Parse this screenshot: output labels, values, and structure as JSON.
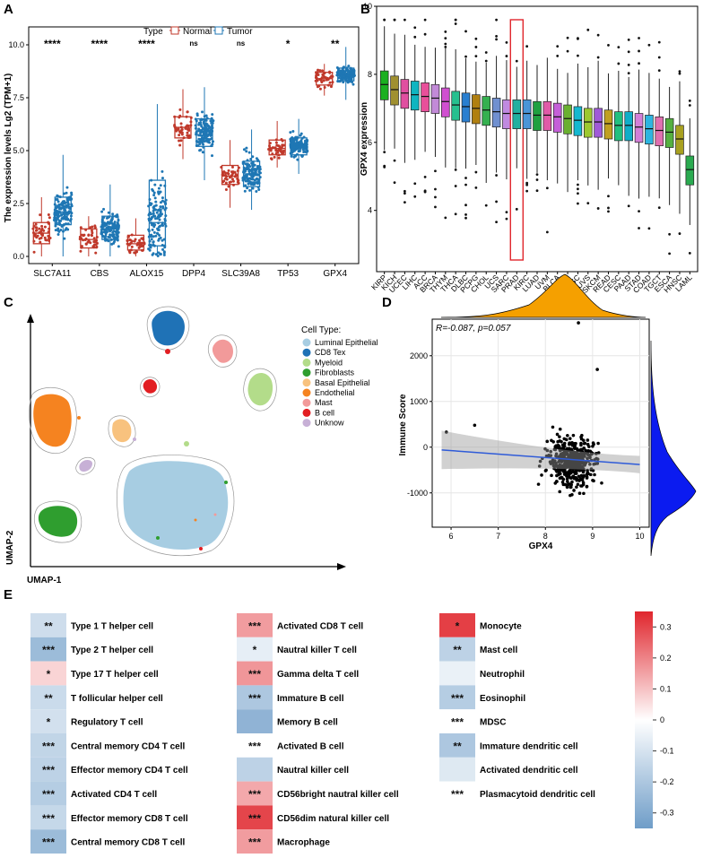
{
  "panel_labels": {
    "a": "A",
    "b": "B",
    "c": "C",
    "d": "D",
    "e": "E"
  },
  "chart_data": [
    {
      "panel": "A",
      "type": "box",
      "legend_title": "Type",
      "legend": [
        "Normal",
        "Tumor"
      ],
      "colors": {
        "Normal": "#c0392b",
        "Tumor": "#1f77b4"
      },
      "ylabel": "The expression levels Lg2 (TPM+1)",
      "ylim": [
        -0.3,
        10.8
      ],
      "yticks": [
        "0.0",
        "2.5",
        "5.0",
        "7.5",
        "10.0"
      ],
      "categories": [
        "SLC7A11",
        "CBS",
        "ALOX15",
        "DPP4",
        "SLC39A8",
        "TP53",
        "GPX4"
      ],
      "significance": [
        "****",
        "****",
        "****",
        "ns",
        "ns",
        "*",
        "**"
      ],
      "series": [
        {
          "name": "Normal",
          "boxes": [
            {
              "whislo": 0.0,
              "q1": 0.6,
              "med": 1.1,
              "q3": 1.6,
              "whishi": 2.8
            },
            {
              "whislo": 0.0,
              "q1": 0.4,
              "med": 0.8,
              "q3": 1.3,
              "whishi": 1.9
            },
            {
              "whislo": 0.0,
              "q1": 0.3,
              "med": 0.6,
              "q3": 1.0,
              "whishi": 1.8
            },
            {
              "whislo": 4.6,
              "q1": 5.6,
              "med": 6.1,
              "q3": 6.6,
              "whishi": 7.9
            },
            {
              "whislo": 2.3,
              "q1": 3.4,
              "med": 3.8,
              "q3": 4.3,
              "whishi": 5.5
            },
            {
              "whislo": 4.2,
              "q1": 4.8,
              "med": 5.1,
              "q3": 5.5,
              "whishi": 6.4
            },
            {
              "whislo": 7.6,
              "q1": 8.1,
              "med": 8.4,
              "q3": 8.7,
              "whishi": 9.1
            }
          ]
        },
        {
          "name": "Tumor",
          "boxes": [
            {
              "whislo": 0.0,
              "q1": 1.5,
              "med": 2.1,
              "q3": 2.8,
              "whishi": 4.8
            },
            {
              "whislo": 0.0,
              "q1": 0.8,
              "med": 1.3,
              "q3": 1.9,
              "whishi": 3.4
            },
            {
              "whislo": 0.0,
              "q1": 0.5,
              "med": 1.6,
              "q3": 3.6,
              "whishi": 7.2
            },
            {
              "whislo": 3.6,
              "q1": 5.2,
              "med": 5.9,
              "q3": 6.5,
              "whishi": 8.0
            },
            {
              "whislo": 2.2,
              "q1": 3.3,
              "med": 3.9,
              "q3": 4.5,
              "whishi": 6.0
            },
            {
              "whislo": 3.9,
              "q1": 4.8,
              "med": 5.2,
              "q3": 5.6,
              "whishi": 6.5
            },
            {
              "whislo": 7.4,
              "q1": 8.3,
              "med": 8.6,
              "q3": 8.9,
              "whishi": 9.9
            }
          ]
        }
      ]
    },
    {
      "panel": "B",
      "type": "box",
      "ylabel": "GPX4 expression",
      "ylim": [
        2.2,
        10.0
      ],
      "yticks": [
        "4",
        "6",
        "8",
        "10"
      ],
      "highlight": "PRAD",
      "categories": [
        "KIRP",
        "KICH",
        "UCEC",
        "LIHC",
        "ACC",
        "BRCA",
        "THYM",
        "THCA",
        "DLBC",
        "PCPG",
        "CHOL",
        "UCS",
        "SARC",
        "PRAD",
        "KIRC",
        "LUAD",
        "UVM",
        "BLCA",
        "MESO",
        "LUSC",
        "UVS",
        "SKCM",
        "READ",
        "CESC",
        "PAAD",
        "STAD",
        "COAD",
        "TGCT",
        "ESCA",
        "HNSC",
        "LAML"
      ],
      "medians": [
        7.7,
        7.55,
        7.45,
        7.4,
        7.35,
        7.3,
        7.2,
        7.1,
        7.05,
        7.0,
        6.95,
        6.9,
        6.85,
        6.85,
        6.85,
        6.8,
        6.8,
        6.75,
        6.7,
        6.65,
        6.6,
        6.6,
        6.55,
        6.5,
        6.5,
        6.45,
        6.4,
        6.35,
        6.3,
        6.1,
        5.2
      ],
      "colors": [
        "#1ab020",
        "#a09030",
        "#e04fa0",
        "#0fb5c0",
        "#e8509a",
        "#c28ad8",
        "#d050d0",
        "#27c08f",
        "#2a7fd0",
        "#b07f10",
        "#35b050",
        "#7090d0",
        "#c08ae0",
        "#22b0a0",
        "#4a95d8",
        "#1fa040",
        "#e05aa8",
        "#c55fd8",
        "#6ab030",
        "#15b8d0",
        "#9dc830",
        "#a05ad8",
        "#c0a020",
        "#20c080",
        "#10aec8",
        "#d37fd8",
        "#2db5e0",
        "#e070b0",
        "#55b040",
        "#a8a020",
        "#2aaa50"
      ]
    },
    {
      "panel": "C",
      "type": "scatter",
      "xlabel": "UMAP-1",
      "ylabel": "UMAP-2",
      "legend_title": "Cell Type:",
      "legend": [
        {
          "name": "Luminal Epithelial",
          "color": "#a7cde2"
        },
        {
          "name": "CD8 Tex",
          "color": "#1f72b6"
        },
        {
          "name": "Myeloid",
          "color": "#b3dc8a"
        },
        {
          "name": "Fibroblasts",
          "color": "#2f9e2f"
        },
        {
          "name": "Basal Epithelial",
          "color": "#f8c27e"
        },
        {
          "name": "Endothelial",
          "color": "#f58320"
        },
        {
          "name": "Mast",
          "color": "#f29a9a"
        },
        {
          "name": "B cell",
          "color": "#e21e22"
        },
        {
          "name": "Unknow",
          "color": "#c7b0d6"
        }
      ]
    },
    {
      "panel": "D",
      "type": "scatter",
      "xlabel": "GPX4",
      "ylabel": "Immune Score",
      "annotation": "R=-0.087, p=0.057",
      "xlim": [
        5.6,
        10.2
      ],
      "ylim": [
        -1750,
        2800
      ],
      "xticks": [
        "6",
        "7",
        "8",
        "9",
        "10"
      ],
      "yticks": [
        "-1000",
        "0",
        "1000",
        "2000"
      ],
      "fit": {
        "x": [
          5.8,
          10.0
        ],
        "y": [
          -60,
          -380
        ]
      },
      "notable_points": [
        {
          "x": 5.9,
          "y": 330
        },
        {
          "x": 6.5,
          "y": 480
        },
        {
          "x": 8.7,
          "y": 2720
        },
        {
          "x": 9.1,
          "y": 1700
        }
      ]
    },
    {
      "panel": "E",
      "type": "heatmap",
      "colorbar": {
        "ticks": [
          "0.3",
          "0.2",
          "0.1",
          "0",
          "-0.1",
          "-0.2",
          "-0.3"
        ],
        "max": 0.35,
        "min": -0.35
      },
      "columns": [
        {
          "cells": [
            {
              "label": "Type 1 T helper cell",
              "value": -0.12,
              "sig": "**"
            },
            {
              "label": "Type 2 T helper cell",
              "value": -0.24,
              "sig": "***"
            },
            {
              "label": "Type 17 T helper cell",
              "value": 0.07,
              "sig": "*"
            },
            {
              "label": "T follicular helper cell",
              "value": -0.13,
              "sig": "**"
            },
            {
              "label": "Regulatory T cell",
              "value": -0.11,
              "sig": "*"
            },
            {
              "label": "Central memory CD4 T cell",
              "value": -0.15,
              "sig": "***"
            },
            {
              "label": "Effector memory CD4 T cell",
              "value": -0.16,
              "sig": "***"
            },
            {
              "label": "Activated CD4 T cell",
              "value": -0.18,
              "sig": "***"
            },
            {
              "label": "Effector memory CD8 T cell",
              "value": -0.14,
              "sig": "***"
            },
            {
              "label": "Central memory CD8 T cell",
              "value": -0.24,
              "sig": "***"
            }
          ]
        },
        {
          "cells": [
            {
              "label": "Activated CD8 T cell",
              "value": 0.16,
              "sig": "***"
            },
            {
              "label": "Nautral killer T cell",
              "value": -0.06,
              "sig": "*"
            },
            {
              "label": "Gamma delta T cell",
              "value": 0.17,
              "sig": "***"
            },
            {
              "label": "Immature B cell",
              "value": -0.2,
              "sig": "***"
            },
            {
              "label": "Memory B cell",
              "value": -0.27,
              "sig": ""
            },
            {
              "label": "Activated B cell",
              "value": 0.0,
              "sig": "***"
            },
            {
              "label": "Nautral killer cell",
              "value": -0.16,
              "sig": ""
            },
            {
              "label": "CD56bright nautral killer cell",
              "value": 0.14,
              "sig": "***"
            },
            {
              "label": "CD56dim natural killer cell",
              "value": 0.3,
              "sig": "***"
            },
            {
              "label": "Macrophage",
              "value": 0.16,
              "sig": "***"
            }
          ]
        },
        {
          "cells": [
            {
              "label": "Monocyte",
              "value": 0.31,
              "sig": "*"
            },
            {
              "label": "Mast cell",
              "value": -0.16,
              "sig": "**"
            },
            {
              "label": "Neutrophil",
              "value": -0.05,
              "sig": ""
            },
            {
              "label": "Eosinophil",
              "value": -0.18,
              "sig": "***"
            },
            {
              "label": "MDSC",
              "value": 0.0,
              "sig": "***"
            },
            {
              "label": "Immature dendritic cell",
              "value": -0.2,
              "sig": "**"
            },
            {
              "label": "Activated dendritic cell",
              "value": -0.08,
              "sig": ""
            },
            {
              "label": "Plasmacytoid  dendritic cell",
              "value": 0.0,
              "sig": "***"
            }
          ]
        }
      ]
    }
  ]
}
